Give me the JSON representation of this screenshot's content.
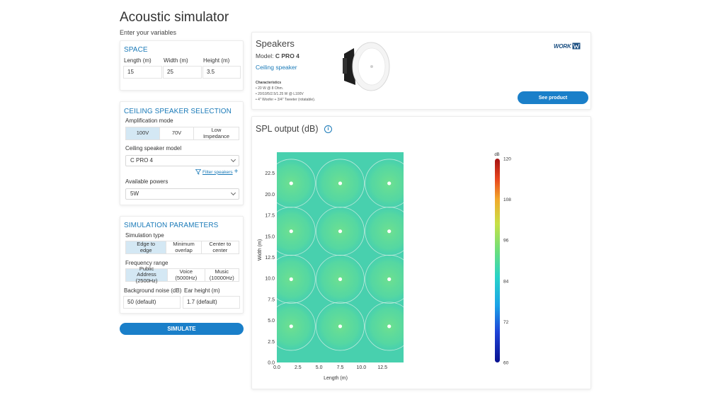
{
  "app": {
    "title": "Acoustic simulator",
    "subtitle": "Enter your variables"
  },
  "space": {
    "title": "SPACE",
    "length_label": "Length (m)",
    "width_label": "Width (m)",
    "height_label": "Height (m)",
    "length_value": "15",
    "width_value": "25",
    "height_value": "3.5"
  },
  "ceiling": {
    "title": "CEILING SPEAKER SELECTION",
    "amp_label": "Amplification mode",
    "amp_options": [
      "100V",
      "70V",
      "Low Impedance"
    ],
    "amp_selected": 0,
    "model_label": "Ceiling speaker model",
    "model_value": "C PRO 4",
    "filter_label": "Filter speakers",
    "powers_label": "Available powers",
    "power_value": "5W"
  },
  "simulation": {
    "title": "SIMULATION PARAMETERS",
    "type_label": "Simulation type",
    "type_options": [
      "Edge to edge",
      "Minimum overlap",
      "Center to center"
    ],
    "type_selected": 0,
    "freq_label": "Frequency range",
    "freq_options": [
      "Public Address (2500Hz)",
      "Voice (5000Hz)",
      "Music (10000Hz)"
    ],
    "freq_selected": 0,
    "noise_label": "Background noise (dB)",
    "ear_label": "Ear height (m)",
    "noise_value": "50 (default)",
    "ear_value": "1.7 (default)",
    "simulate_label": "SIMULATE"
  },
  "speaker": {
    "title": "Speakers",
    "model_prefix": "Model:",
    "model_name": "C PRO 4",
    "category": "Ceiling speaker",
    "characteristics_title": "Characteristics",
    "characteristics": [
      "• 20 W @ 8 Ohm.",
      "• 20/10/5/2.5/1.25 W @ L100V",
      "• 4\" Woofer + 3/4\" Tweeter (rotatable)."
    ],
    "see_product_label": "See product",
    "brand": "WORK"
  },
  "spl": {
    "title": "SPL output (dB)",
    "info_icon": "info-icon"
  },
  "chart_data": {
    "type": "heatmap",
    "xlabel": "Length (m)",
    "ylabel": "Width (m)",
    "xlim": [
      0,
      15
    ],
    "ylim": [
      0,
      25
    ],
    "x_ticks": [
      0.0,
      2.5,
      5.0,
      7.5,
      10.0,
      12.5
    ],
    "y_ticks": [
      0.0,
      2.5,
      5.0,
      7.5,
      10.0,
      12.5,
      15.0,
      17.5,
      20.0,
      22.5
    ],
    "speakers": [
      {
        "x": 1.7,
        "y": 4.3
      },
      {
        "x": 7.5,
        "y": 4.3
      },
      {
        "x": 13.3,
        "y": 4.3
      },
      {
        "x": 1.7,
        "y": 9.9
      },
      {
        "x": 7.5,
        "y": 9.9
      },
      {
        "x": 13.3,
        "y": 9.9
      },
      {
        "x": 1.7,
        "y": 15.6
      },
      {
        "x": 7.5,
        "y": 15.6
      },
      {
        "x": 13.3,
        "y": 15.6
      },
      {
        "x": 1.7,
        "y": 21.3
      },
      {
        "x": 7.5,
        "y": 21.3
      },
      {
        "x": 13.3,
        "y": 21.3
      }
    ],
    "coverage_radius_m": 2.85,
    "colorbar": {
      "unit": "dB",
      "min": 60,
      "max": 120,
      "ticks": [
        60,
        72,
        84,
        96,
        108,
        120
      ]
    },
    "field_level_db": 87
  }
}
